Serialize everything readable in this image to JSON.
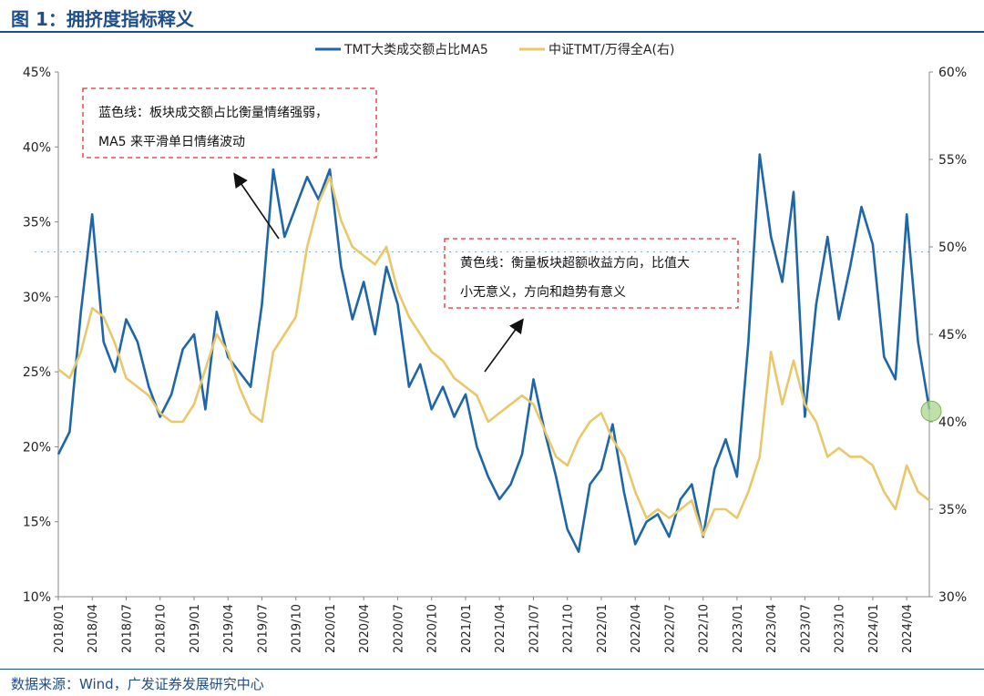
{
  "title": "图 1：拥挤度指标释义",
  "source": "数据来源：Wind，广发证券发展研究中心",
  "chart_data": {
    "type": "line",
    "title": "",
    "xlabel": "",
    "x_ticks": [
      "2018/01",
      "2018/04",
      "2018/07",
      "2018/10",
      "2019/01",
      "2019/04",
      "2019/07",
      "2019/10",
      "2020/01",
      "2020/04",
      "2020/07",
      "2020/10",
      "2021/01",
      "2021/04",
      "2021/07",
      "2021/10",
      "2022/01",
      "2022/04",
      "2022/07",
      "2022/10",
      "2023/01",
      "2023/04",
      "2023/07",
      "2023/10",
      "2024/01",
      "2024/04"
    ],
    "x_range": [
      "2018/01",
      "2024/06"
    ],
    "y_left": {
      "label": "",
      "ylim": [
        10,
        45
      ],
      "ticks": [
        "10%",
        "15%",
        "20%",
        "25%",
        "30%",
        "35%",
        "40%",
        "45%"
      ]
    },
    "y_right": {
      "label": "",
      "ylim": [
        30,
        60
      ],
      "ticks": [
        "30%",
        "35%",
        "40%",
        "45%",
        "50%",
        "55%",
        "60%"
      ]
    },
    "legend_position": "top-center",
    "colors": {
      "blue": "#1f66a8",
      "gold": "#e8c86a",
      "annotation_border": "#e03030",
      "axis": "#888888"
    },
    "series": [
      {
        "name": "TMT大类成交额占比MA5",
        "axis": "left",
        "color": "#1f66a8",
        "x": [
          "2018/01",
          "2018/02",
          "2018/03",
          "2018/04",
          "2018/05",
          "2018/06",
          "2018/07",
          "2018/08",
          "2018/09",
          "2018/10",
          "2018/11",
          "2018/12",
          "2019/01",
          "2019/02",
          "2019/03",
          "2019/04",
          "2019/05",
          "2019/06",
          "2019/07",
          "2019/08",
          "2019/09",
          "2019/10",
          "2019/11",
          "2019/12",
          "2020/01",
          "2020/02",
          "2020/03",
          "2020/04",
          "2020/05",
          "2020/06",
          "2020/07",
          "2020/08",
          "2020/09",
          "2020/10",
          "2020/11",
          "2020/12",
          "2021/01",
          "2021/02",
          "2021/03",
          "2021/04",
          "2021/05",
          "2021/06",
          "2021/07",
          "2021/08",
          "2021/09",
          "2021/10",
          "2021/11",
          "2021/12",
          "2022/01",
          "2022/02",
          "2022/03",
          "2022/04",
          "2022/05",
          "2022/06",
          "2022/07",
          "2022/08",
          "2022/09",
          "2022/10",
          "2022/11",
          "2022/12",
          "2023/01",
          "2023/02",
          "2023/03",
          "2023/04",
          "2023/05",
          "2023/06",
          "2023/07",
          "2023/08",
          "2023/09",
          "2023/10",
          "2023/11",
          "2023/12",
          "2024/01",
          "2024/02",
          "2024/03",
          "2024/04",
          "2024/05",
          "2024/06"
        ],
        "values": [
          19.5,
          21.0,
          29.0,
          35.5,
          27.0,
          25.0,
          28.5,
          27.0,
          24.0,
          22.0,
          23.5,
          26.5,
          27.5,
          22.5,
          29.0,
          26.0,
          25.0,
          24.0,
          29.5,
          38.5,
          34.0,
          36.0,
          38.0,
          36.5,
          38.5,
          32.0,
          28.5,
          31.0,
          27.5,
          32.0,
          29.5,
          24.0,
          25.5,
          22.5,
          24.0,
          22.0,
          23.5,
          20.0,
          18.0,
          16.5,
          17.5,
          19.5,
          24.5,
          21.0,
          18.0,
          14.5,
          13.0,
          17.5,
          18.5,
          21.5,
          17.0,
          13.5,
          15.0,
          15.5,
          14.0,
          16.5,
          17.5,
          14.0,
          18.5,
          20.5,
          18.0,
          27.0,
          39.5,
          34.0,
          31.0,
          37.0,
          22.0,
          29.5,
          34.0,
          28.5,
          32.0,
          36.0,
          33.5,
          26.0,
          24.5,
          35.5,
          27.0,
          22.5
        ]
      },
      {
        "name": "中证TMT/万得全A(右)",
        "axis": "right",
        "color": "#e8c86a",
        "x": [
          "2018/01",
          "2018/02",
          "2018/03",
          "2018/04",
          "2018/05",
          "2018/06",
          "2018/07",
          "2018/08",
          "2018/09",
          "2018/10",
          "2018/11",
          "2018/12",
          "2019/01",
          "2019/02",
          "2019/03",
          "2019/04",
          "2019/05",
          "2019/06",
          "2019/07",
          "2019/08",
          "2019/09",
          "2019/10",
          "2019/11",
          "2019/12",
          "2020/01",
          "2020/02",
          "2020/03",
          "2020/04",
          "2020/05",
          "2020/06",
          "2020/07",
          "2020/08",
          "2020/09",
          "2020/10",
          "2020/11",
          "2020/12",
          "2021/01",
          "2021/02",
          "2021/03",
          "2021/04",
          "2021/05",
          "2021/06",
          "2021/07",
          "2021/08",
          "2021/09",
          "2021/10",
          "2021/11",
          "2021/12",
          "2022/01",
          "2022/02",
          "2022/03",
          "2022/04",
          "2022/05",
          "2022/06",
          "2022/07",
          "2022/08",
          "2022/09",
          "2022/10",
          "2022/11",
          "2022/12",
          "2023/01",
          "2023/02",
          "2023/03",
          "2023/04",
          "2023/05",
          "2023/06",
          "2023/07",
          "2023/08",
          "2023/09",
          "2023/10",
          "2023/11",
          "2023/12",
          "2024/01",
          "2024/02",
          "2024/03",
          "2024/04",
          "2024/05",
          "2024/06"
        ],
        "values": [
          43.0,
          42.5,
          44.0,
          46.5,
          46.0,
          44.5,
          42.5,
          42.0,
          41.5,
          40.5,
          40.0,
          40.0,
          41.0,
          43.0,
          45.0,
          44.0,
          42.0,
          40.5,
          40.0,
          44.0,
          45.0,
          46.0,
          50.0,
          52.5,
          54.0,
          51.5,
          50.0,
          49.5,
          49.0,
          50.0,
          47.5,
          46.0,
          45.0,
          44.0,
          43.5,
          42.5,
          42.0,
          41.5,
          40.0,
          40.5,
          41.0,
          41.5,
          41.0,
          39.5,
          38.0,
          37.5,
          39.0,
          40.0,
          40.5,
          39.0,
          38.0,
          36.0,
          34.5,
          35.0,
          34.5,
          35.0,
          35.5,
          33.5,
          35.0,
          35.0,
          34.5,
          36.0,
          38.0,
          44.0,
          41.0,
          43.5,
          41.0,
          40.0,
          38.0,
          38.5,
          38.0,
          38.0,
          37.5,
          36.0,
          35.0,
          37.5,
          36.0,
          35.5
        ]
      }
    ],
    "annotations": [
      {
        "text_line1": "蓝色线：板块成交额占比衡量情绪强弱，",
        "text_line2": "MA5 来平滑单日情绪波动"
      },
      {
        "text_line1": "黄色线：衡量板块超额收益方向，比值大",
        "text_line2": "小无意义，方向和趋势有意义"
      }
    ]
  }
}
